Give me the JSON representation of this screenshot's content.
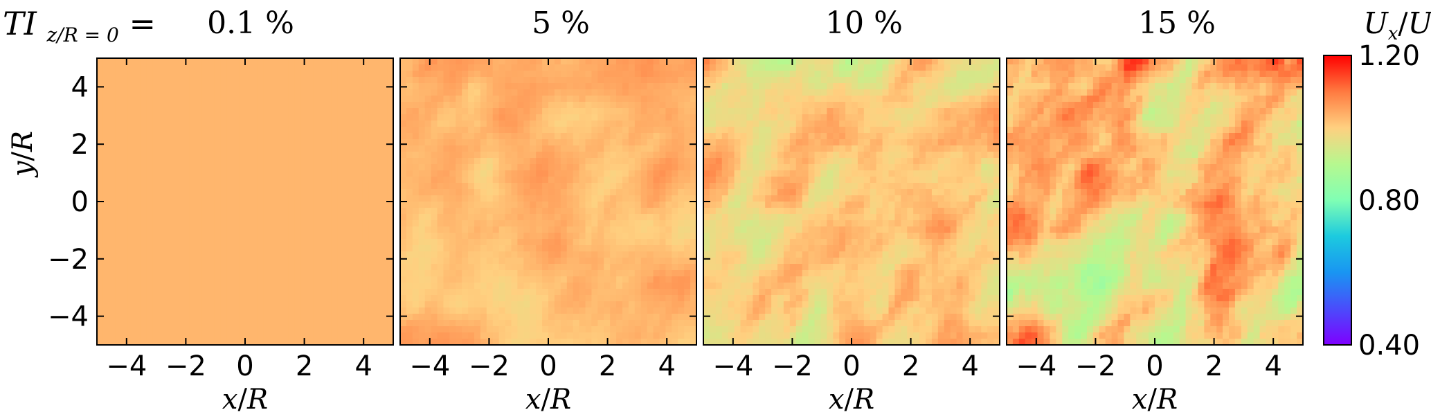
{
  "figure": {
    "row_label": {
      "base": "TI",
      "subscript": "z/R = 0",
      "suffix": " ="
    }
  },
  "chart_data": {
    "type": "heatmap",
    "quantity": {
      "base": "U",
      "sub": "x",
      "sep": "/",
      "base2": "U",
      "sub2": "∞"
    },
    "xlabel": {
      "var": "x",
      "sep": "/",
      "ref": "R"
    },
    "ylabel": {
      "var": "y",
      "sep": "/",
      "ref": "R"
    },
    "xlim": [
      -5,
      5
    ],
    "ylim": [
      -5,
      5
    ],
    "xticks": [
      -4,
      -2,
      0,
      2,
      4
    ],
    "yticks": [
      -4,
      -2,
      0,
      2,
      4
    ],
    "xtick_labels": [
      "−4",
      "−2",
      "0",
      "2",
      "4"
    ],
    "ytick_labels": [
      "−4",
      "−2",
      "0",
      "2",
      "4"
    ],
    "grid": false,
    "colorbar": {
      "range": [
        0.4,
        1.2
      ],
      "colormap": "rainbow",
      "ticks": [
        1.2,
        0.8,
        0.4
      ],
      "tick_labels": [
        "1.20",
        "0.80",
        "0.40"
      ],
      "position": "right"
    },
    "panels": [
      {
        "label": "0.1 %",
        "ti_percent": 0.1,
        "mean_velocity": 1.03,
        "fluctuation": 0.0
      },
      {
        "label": "5 %",
        "ti_percent": 5,
        "mean_velocity": 1.03,
        "fluctuation": 0.05
      },
      {
        "label": "10 %",
        "ti_percent": 10,
        "mean_velocity": 1.0,
        "fluctuation": 0.1
      },
      {
        "label": "15 %",
        "ti_percent": 15,
        "mean_velocity": 1.0,
        "fluctuation": 0.15
      }
    ]
  }
}
